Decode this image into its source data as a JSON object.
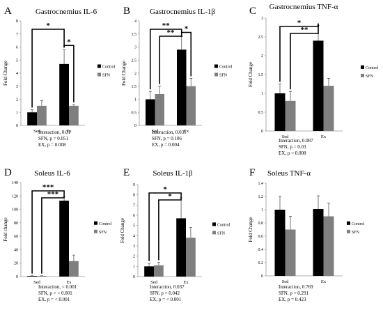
{
  "chart_data": [
    {
      "type": "bar",
      "panel_letter": "A",
      "title": "Gastrocnemius IL-6",
      "ylabel": "Fold Change",
      "ylim": [
        0,
        8
      ],
      "yticks": [
        0,
        1,
        2,
        3,
        4,
        5,
        6,
        7,
        8
      ],
      "categories": [
        "Sed",
        "Ex"
      ],
      "series": [
        {
          "name": "Control",
          "color": "#000000",
          "values": [
            1.0,
            4.7
          ],
          "errors": [
            0.2,
            1.1
          ]
        },
        {
          "name": "SFN",
          "color": "#7f7f7f",
          "values": [
            1.5,
            1.5
          ],
          "errors": [
            0.4,
            0.1
          ]
        }
      ],
      "significance": [
        {
          "label": "*",
          "from": "Sed Control",
          "to": "Ex Control"
        },
        {
          "label": "*",
          "from": "Ex Control",
          "to": "Ex SFN"
        }
      ],
      "stats": [
        "Interaction, 0.01",
        "SFN, p = 0.051",
        "EX, p = 0.008"
      ]
    },
    {
      "type": "bar",
      "panel_letter": "B",
      "title": "Gastrocnemius IL-1β",
      "ylabel": "Fold Change",
      "ylim": [
        0,
        4
      ],
      "yticks": [
        0,
        0.5,
        1,
        1.5,
        2,
        2.5,
        3,
        3.5,
        4
      ],
      "categories": [
        "Sed",
        "Ex"
      ],
      "series": [
        {
          "name": "Control",
          "color": "#000000",
          "values": [
            1.0,
            2.9
          ],
          "errors": [
            0.3,
            0.5
          ]
        },
        {
          "name": "SFN",
          "color": "#7f7f7f",
          "values": [
            1.2,
            1.5
          ],
          "errors": [
            0.3,
            0.3
          ]
        }
      ],
      "significance": [
        {
          "label": "**",
          "from": "Sed Control",
          "to": "Ex Control"
        },
        {
          "label": "**",
          "from": "Sed SFN",
          "to": "Ex Control"
        },
        {
          "label": "*",
          "from": "Ex Control",
          "to": "Ex SFN"
        }
      ],
      "stats": [
        "Interaction, 0.031",
        "SFN, p = 0.106",
        "EX, p = 0.004"
      ]
    },
    {
      "type": "bar",
      "panel_letter": "C",
      "title": "Gastrocnemius TNF-α",
      "ylabel": "Fold Change",
      "ylim": [
        0,
        3
      ],
      "yticks": [
        0,
        0.5,
        1,
        1.5,
        2,
        2.5,
        3
      ],
      "categories": [
        "Sed",
        "Ex"
      ],
      "series": [
        {
          "name": "Control",
          "color": "#000000",
          "values": [
            1.0,
            2.4
          ],
          "errors": [
            0.25,
            0.4
          ]
        },
        {
          "name": "SFN",
          "color": "#7f7f7f",
          "values": [
            0.8,
            1.2
          ],
          "errors": [
            0.25,
            0.2
          ]
        }
      ],
      "significance": [
        {
          "label": "*",
          "from": "Sed Control",
          "to": "Ex Control"
        },
        {
          "label": "**",
          "from": "Sed SFN",
          "to": "Ex Control"
        }
      ],
      "stats": [
        "Interaction, 0.087",
        "SFN, p = 0.03",
        "EX, p = 0.008"
      ]
    },
    {
      "type": "bar",
      "panel_letter": "D",
      "title": "Soleus IL-6",
      "ylabel": "Fold change",
      "ylim": [
        0,
        140
      ],
      "yticks": [
        0,
        20,
        40,
        60,
        80,
        100,
        120,
        140
      ],
      "categories": [
        "Sed",
        "Ex"
      ],
      "series": [
        {
          "name": "Control",
          "color": "#000000",
          "values": [
            1.0,
            113
          ],
          "errors": [
            0.3,
            6
          ]
        },
        {
          "name": "SFN",
          "color": "#7f7f7f",
          "values": [
            1.0,
            23
          ],
          "errors": [
            0.3,
            9
          ]
        }
      ],
      "significance": [
        {
          "label": "***",
          "from": "Sed Control",
          "to": "Ex Control"
        },
        {
          "label": "***",
          "from": "Sed SFN",
          "to": "Ex Control"
        }
      ],
      "stats": [
        "Interaction, < 0.001",
        "SFN, p = < 0.001",
        "EX, p = < 0.001"
      ]
    },
    {
      "type": "bar",
      "panel_letter": "E",
      "title": "Soleus IL-1β",
      "ylabel": "Fold Change",
      "ylim": [
        0,
        9
      ],
      "yticks": [
        0,
        1,
        2,
        3,
        4,
        5,
        6,
        7,
        8,
        9
      ],
      "categories": [
        "Sed",
        "Ex"
      ],
      "series": [
        {
          "name": "Control",
          "color": "#000000",
          "values": [
            1.0,
            5.7
          ],
          "errors": [
            0.3,
            2.0
          ]
        },
        {
          "name": "SFN",
          "color": "#7f7f7f",
          "values": [
            1.1,
            3.8
          ],
          "errors": [
            0.3,
            1.0
          ]
        }
      ],
      "significance": [
        {
          "label": "*",
          "from": "Sed Control",
          "to": "Ex Control"
        },
        {
          "label": "*",
          "from": "Sed SFN",
          "to": "Ex Control"
        }
      ],
      "stats": [
        "Interaction, 0.037",
        "SFN, p = 0.042",
        "EX, p = < 0.001"
      ]
    },
    {
      "type": "bar",
      "panel_letter": "F",
      "title": "Soleus TNF-α",
      "ylabel": "Fold Change",
      "ylim": [
        0,
        1.4
      ],
      "yticks": [
        0,
        0.2,
        0.4,
        0.6,
        0.8,
        1,
        1.2,
        1.4
      ],
      "categories": [
        "Sed",
        "Ex"
      ],
      "series": [
        {
          "name": "Control",
          "color": "#000000",
          "values": [
            1.0,
            1.01
          ],
          "errors": [
            0.2,
            0.2
          ]
        },
        {
          "name": "SFN",
          "color": "#7f7f7f",
          "values": [
            0.7,
            0.9
          ],
          "errors": [
            0.2,
            0.2
          ]
        }
      ],
      "significance": [],
      "stats": [
        "Interaction, 0.769",
        "SFN, p = 0.291",
        "EX, p = 0.423"
      ]
    }
  ]
}
